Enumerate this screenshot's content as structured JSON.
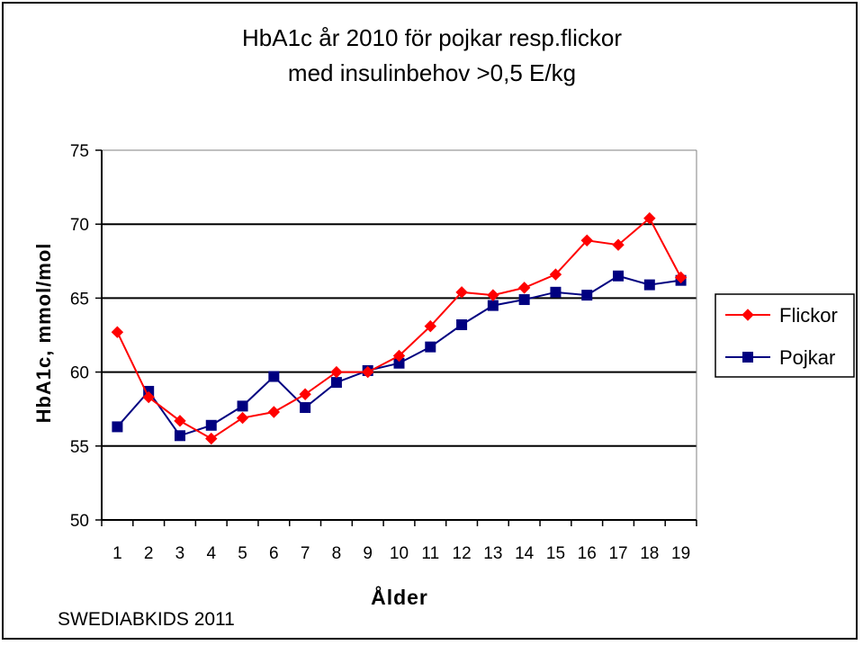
{
  "chart_data": {
    "type": "line",
    "title_lines": [
      "HbA1c år 2010 för pojkar resp.flickor",
      "med insulinbehov >0,5 E/kg"
    ],
    "xlabel": "Ålder",
    "ylabel": "HbA1c, mmol/mol",
    "x": [
      "1",
      "2",
      "3",
      "4",
      "5",
      "6",
      "7",
      "8",
      "9",
      "10",
      "11",
      "12",
      "13",
      "14",
      "15",
      "16",
      "17",
      "18",
      "19"
    ],
    "ylim": [
      50,
      75
    ],
    "yticks": [
      "50",
      "55",
      "60",
      "65",
      "70",
      "75"
    ],
    "grid": true,
    "legend": "right",
    "series": [
      {
        "name": "Flickor",
        "color": "#ff0000",
        "marker": "diamond",
        "values": [
          62.7,
          58.3,
          56.7,
          55.5,
          56.9,
          57.3,
          58.5,
          60.0,
          60.0,
          61.1,
          63.1,
          65.4,
          65.2,
          65.7,
          66.6,
          68.9,
          68.6,
          70.4,
          66.4
        ]
      },
      {
        "name": "Pojkar",
        "color": "#000080",
        "marker": "square",
        "values": [
          56.3,
          58.7,
          55.7,
          56.4,
          57.7,
          59.7,
          57.6,
          59.3,
          60.1,
          60.6,
          61.7,
          63.2,
          64.5,
          64.9,
          65.4,
          65.2,
          66.5,
          65.9,
          66.2
        ]
      }
    ]
  },
  "footer": {
    "source": "SWEDIABKIDS 2011"
  }
}
